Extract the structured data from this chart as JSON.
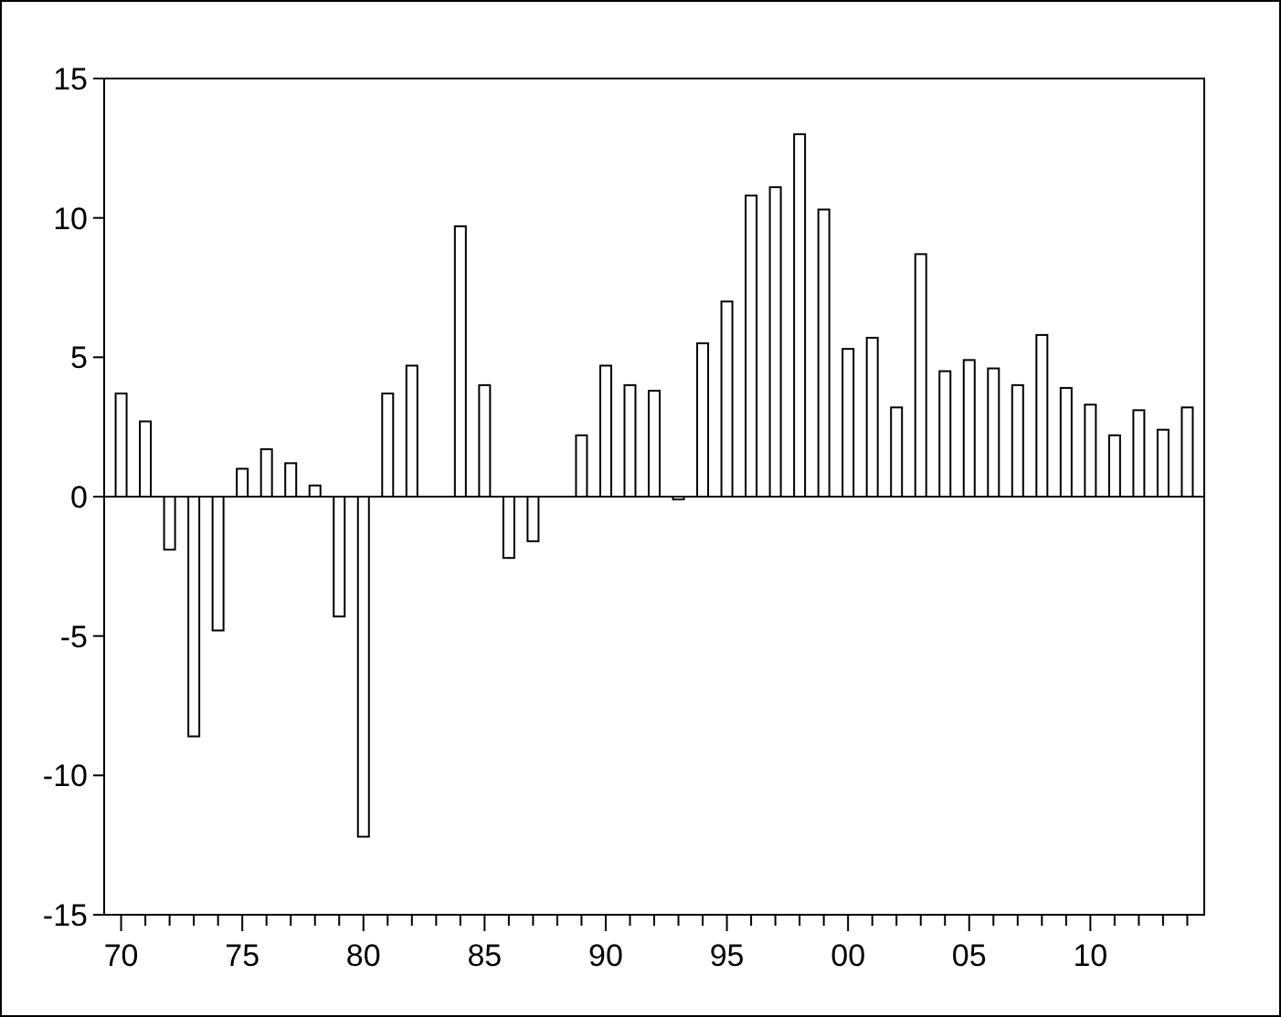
{
  "chart_data": {
    "type": "bar",
    "x": [
      1970,
      1971,
      1972,
      1973,
      1974,
      1975,
      1976,
      1977,
      1978,
      1979,
      1980,
      1981,
      1982,
      1984,
      1985,
      1986,
      1987,
      1989,
      1990,
      1991,
      1992,
      1993,
      1994,
      1995,
      1996,
      1997,
      1998,
      1999,
      2000,
      2001,
      2002,
      2003,
      2004,
      2005,
      2006,
      2007,
      2008,
      2009,
      2010,
      2011,
      2012,
      2013,
      2014
    ],
    "values": [
      3.7,
      2.7,
      -1.9,
      -8.6,
      -4.8,
      1.0,
      1.7,
      1.2,
      0.4,
      -4.3,
      -12.2,
      3.7,
      4.7,
      9.7,
      4.0,
      -2.2,
      -1.6,
      2.2,
      4.7,
      4.0,
      3.8,
      -0.1,
      5.5,
      7.0,
      10.8,
      11.1,
      13.0,
      10.3,
      5.3,
      5.7,
      3.2,
      8.7,
      4.5,
      4.9,
      4.6,
      4.0,
      5.8,
      3.9,
      3.3,
      2.2,
      3.1,
      2.4,
      3.2
    ],
    "color": "#ffffff",
    "ylim": [
      -15,
      15
    ],
    "yticks": [
      -15,
      -10,
      -5,
      0,
      5,
      10,
      15
    ],
    "xlim": [
      1969.3,
      2014.7
    ],
    "xticks": [
      {
        "value": 1970,
        "label": "70"
      },
      {
        "value": 1971,
        "label": null
      },
      {
        "value": 1972,
        "label": null
      },
      {
        "value": 1973,
        "label": null
      },
      {
        "value": 1974,
        "label": null
      },
      {
        "value": 1975,
        "label": "75"
      },
      {
        "value": 1976,
        "label": null
      },
      {
        "value": 1977,
        "label": null
      },
      {
        "value": 1978,
        "label": null
      },
      {
        "value": 1979,
        "label": null
      },
      {
        "value": 1980,
        "label": "80"
      },
      {
        "value": 1981,
        "label": null
      },
      {
        "value": 1982,
        "label": null
      },
      {
        "value": 1983,
        "label": null
      },
      {
        "value": 1984,
        "label": null
      },
      {
        "value": 1985,
        "label": "85"
      },
      {
        "value": 1986,
        "label": null
      },
      {
        "value": 1987,
        "label": null
      },
      {
        "value": 1988,
        "label": null
      },
      {
        "value": 1989,
        "label": null
      },
      {
        "value": 1990,
        "label": "90"
      },
      {
        "value": 1991,
        "label": null
      },
      {
        "value": 1992,
        "label": null
      },
      {
        "value": 1993,
        "label": null
      },
      {
        "value": 1994,
        "label": null
      },
      {
        "value": 1995,
        "label": "95"
      },
      {
        "value": 1996,
        "label": null
      },
      {
        "value": 1997,
        "label": null
      },
      {
        "value": 1998,
        "label": null
      },
      {
        "value": 1999,
        "label": null
      },
      {
        "value": 2000,
        "label": "00"
      },
      {
        "value": 2001,
        "label": null
      },
      {
        "value": 2002,
        "label": null
      },
      {
        "value": 2003,
        "label": null
      },
      {
        "value": 2004,
        "label": null
      },
      {
        "value": 2005,
        "label": "05"
      },
      {
        "value": 2006,
        "label": null
      },
      {
        "value": 2007,
        "label": null
      },
      {
        "value": 2008,
        "label": null
      },
      {
        "value": 2009,
        "label": null
      },
      {
        "value": 2010,
        "label": "10"
      },
      {
        "value": 2011,
        "label": null
      },
      {
        "value": 2012,
        "label": null
      },
      {
        "value": 2013,
        "label": null
      },
      {
        "value": 2014,
        "label": null
      }
    ],
    "ref_lines": [
      {
        "axis": "y",
        "value": 0,
        "color": "#000000"
      }
    ],
    "grid": false
  }
}
